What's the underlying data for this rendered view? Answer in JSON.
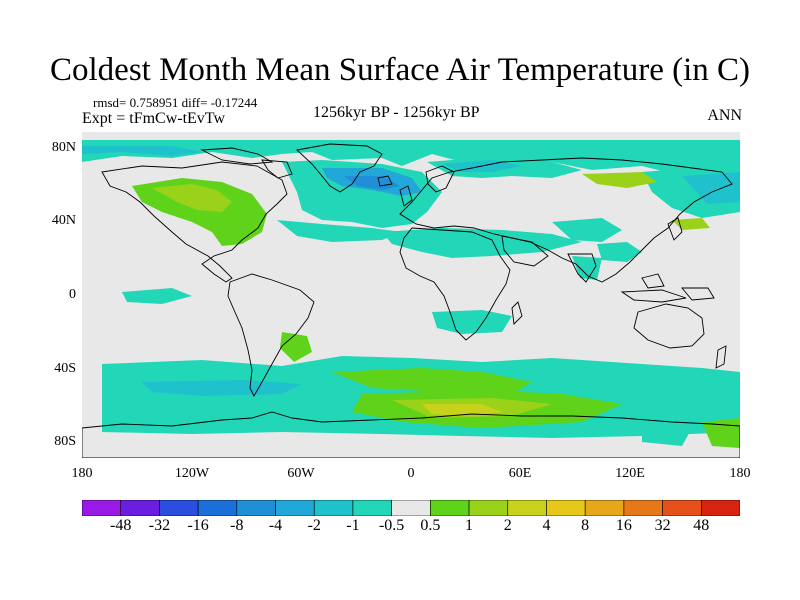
{
  "title": "Coldest Month Mean Surface Air Temperature (in C)",
  "stats": "rmsd= 0.758951  diff= -0.17244",
  "experiment": "Expt = tFmCw-tEvTw",
  "period": "1256kyr BP - 1256kyr BP",
  "season": "ANN",
  "lat_labels": [
    "80N",
    "40N",
    "0",
    "40S",
    "80S"
  ],
  "lon_labels": [
    "180",
    "120W",
    "60W",
    "0",
    "60E",
    "120E",
    "180"
  ],
  "colorbar": {
    "labels": [
      "-48",
      "-32",
      "-16",
      "-8",
      "-4",
      "-2",
      "-1",
      "-0.5",
      "0.5",
      "1",
      "2",
      "4",
      "8",
      "16",
      "32",
      "48"
    ],
    "colors": [
      "#9a19e6",
      "#6a1fe0",
      "#2a4fe0",
      "#1a6fd8",
      "#1f8fd6",
      "#22a8d8",
      "#1fc2cc",
      "#22d6b8",
      "#e8e8e8",
      "#5fd21a",
      "#9ad21a",
      "#c8d21a",
      "#e6c81a",
      "#e6a81a",
      "#e6781a",
      "#e6501a",
      "#d8240f"
    ]
  },
  "map_colors": {
    "land_outline": "#000000",
    "ocean_background": "#e8e8e8",
    "neg_light": "#22d6b8",
    "neg_mid": "#1fc2cc",
    "neg_strong": "#22a8d8",
    "neg_deep": "#1f8fd6",
    "pos_light": "#5fd21a",
    "pos_mid": "#9ad21a",
    "pos_strong": "#c8d21a"
  }
}
